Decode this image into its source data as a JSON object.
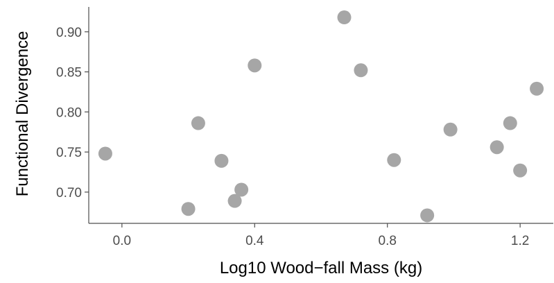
{
  "chart_data": {
    "type": "scatter",
    "xlabel": "Log10 Wood−fall Mass (kg)",
    "ylabel": "Functional Divergence",
    "xlim": [
      -0.1,
      1.3
    ],
    "ylim": [
      0.661,
      0.931
    ],
    "xticks": [
      0.0,
      0.4,
      0.8,
      1.2
    ],
    "xtick_labels": [
      "0.0",
      "0.4",
      "0.8",
      "1.2"
    ],
    "yticks": [
      0.7,
      0.75,
      0.8,
      0.85,
      0.9
    ],
    "ytick_labels": [
      "0.70",
      "0.75",
      "0.80",
      "0.85",
      "0.90"
    ],
    "grid": false,
    "point_color": "#a6a6a6",
    "points": [
      {
        "x": -0.05,
        "y": 0.748
      },
      {
        "x": 0.2,
        "y": 0.679
      },
      {
        "x": 0.23,
        "y": 0.786
      },
      {
        "x": 0.3,
        "y": 0.739
      },
      {
        "x": 0.34,
        "y": 0.689
      },
      {
        "x": 0.36,
        "y": 0.703
      },
      {
        "x": 0.4,
        "y": 0.858
      },
      {
        "x": 0.67,
        "y": 0.918
      },
      {
        "x": 0.72,
        "y": 0.852
      },
      {
        "x": 0.82,
        "y": 0.74
      },
      {
        "x": 0.92,
        "y": 0.671
      },
      {
        "x": 0.99,
        "y": 0.778
      },
      {
        "x": 1.13,
        "y": 0.756
      },
      {
        "x": 1.17,
        "y": 0.786
      },
      {
        "x": 1.2,
        "y": 0.727
      },
      {
        "x": 1.25,
        "y": 0.829
      }
    ]
  }
}
